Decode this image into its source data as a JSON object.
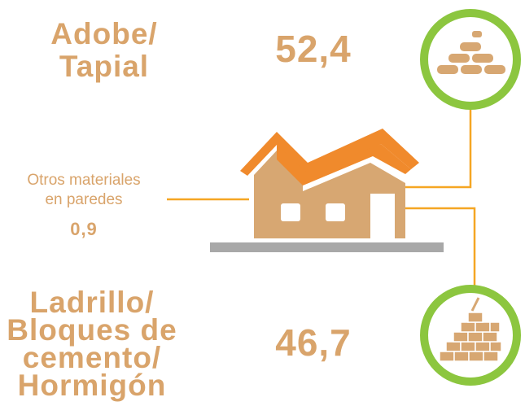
{
  "items": [
    {
      "label_lines": [
        "Adobe/",
        "Tapial"
      ],
      "value": "52,4"
    },
    {
      "label_lines": [
        "Otros materiales",
        "en paredes"
      ],
      "value": "0,9"
    },
    {
      "label_lines": [
        "Ladrillo/",
        "Bloques de",
        "cemento/",
        "Hormigón"
      ],
      "value": "46,7"
    }
  ]
}
